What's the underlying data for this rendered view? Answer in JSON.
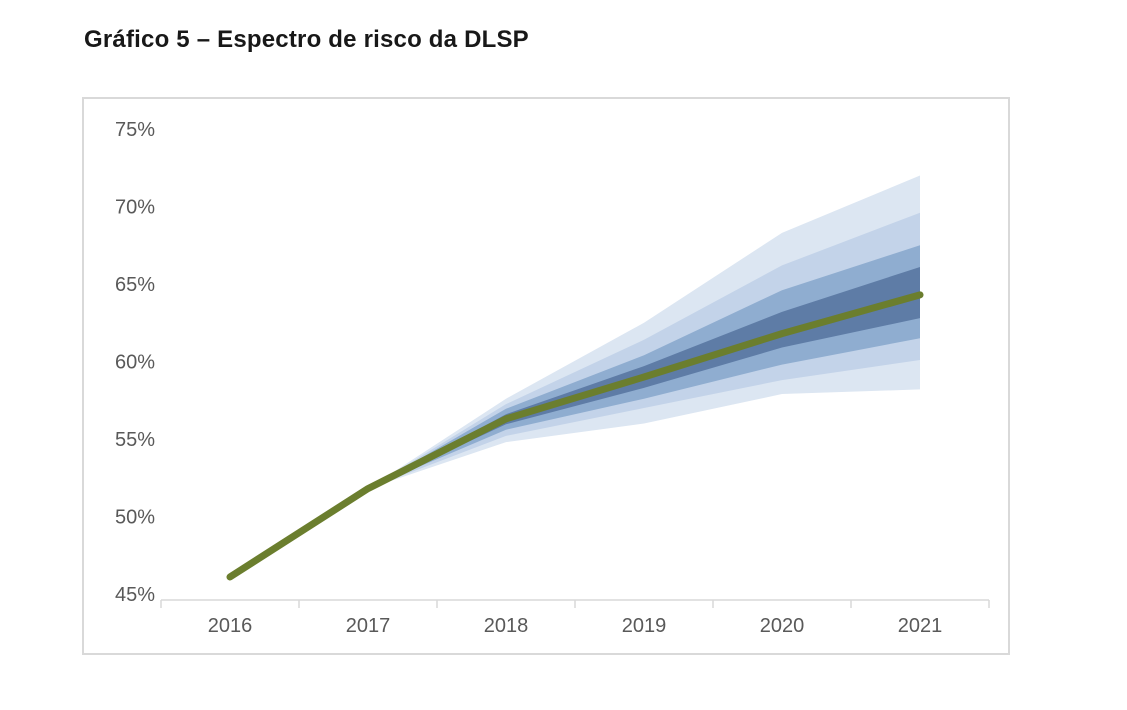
{
  "page": {
    "title": "Gráfico 5 – Espectro de risco da DLSP"
  },
  "chart_data": {
    "type": "area",
    "subtype": "fan-chart",
    "title": "Gráfico 5 – Espectro de risco da DLSP",
    "xlabel": "",
    "ylabel": "",
    "x_categories": [
      "2016",
      "2017",
      "2018",
      "2019",
      "2020",
      "2021"
    ],
    "y_ticks": [
      "75%",
      "70%",
      "65%",
      "60%",
      "55%",
      "50%",
      "45%"
    ],
    "ylim": [
      45,
      75
    ],
    "y_tick_step": 5,
    "grid": "off",
    "legend": "none",
    "axis_color": "#d9d9d9",
    "label_color": "#595959",
    "center_line": {
      "name": "trajetoria-central-dlsp",
      "color": "#6b7e2e",
      "x": [
        "2016",
        "2017",
        "2018",
        "2019",
        "2020",
        "2021"
      ],
      "values": [
        46.1,
        51.8,
        56.3,
        59.0,
        61.8,
        64.3
      ]
    },
    "bands": [
      {
        "name": "band-outer",
        "color": "#dce6f2",
        "x": [
          "2017",
          "2018",
          "2019",
          "2020",
          "2021"
        ],
        "upper": [
          51.8,
          57.6,
          62.5,
          68.3,
          72.0
        ],
        "lower": [
          51.8,
          54.8,
          56.0,
          57.9,
          58.2
        ]
      },
      {
        "name": "band-mid-outer",
        "color": "#c3d3e9",
        "x": [
          "2017",
          "2018",
          "2019",
          "2020",
          "2021"
        ],
        "upper": [
          51.8,
          57.25,
          61.4,
          66.2,
          69.6
        ],
        "lower": [
          51.8,
          55.2,
          57.0,
          58.8,
          60.1
        ]
      },
      {
        "name": "band-mid-inner",
        "color": "#8fadd0",
        "x": [
          "2017",
          "2018",
          "2019",
          "2020",
          "2021"
        ],
        "upper": [
          51.8,
          56.95,
          60.4,
          64.6,
          67.5
        ],
        "lower": [
          51.8,
          55.6,
          57.6,
          59.8,
          61.5
        ]
      },
      {
        "name": "band-inner",
        "color": "#5e7ca6",
        "x": [
          "2017",
          "2018",
          "2019",
          "2020",
          "2021"
        ],
        "upper": [
          51.8,
          56.6,
          59.7,
          63.2,
          66.1
        ],
        "lower": [
          51.8,
          55.95,
          58.3,
          60.9,
          62.8
        ]
      }
    ]
  }
}
